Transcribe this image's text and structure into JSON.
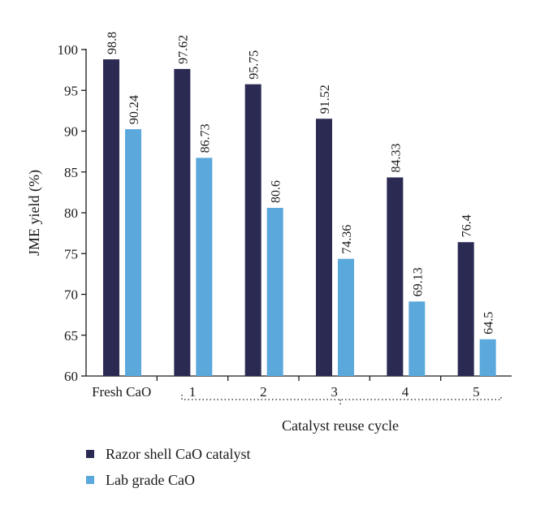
{
  "chart_data": {
    "type": "bar",
    "categories": [
      "Fresh CaO",
      "1",
      "2",
      "3",
      "4",
      "5"
    ],
    "series": [
      {
        "name": "Razor shell CaO catalyst",
        "color": "#2b2a53",
        "values": [
          98.8,
          97.62,
          95.75,
          91.52,
          84.33,
          76.4
        ],
        "labels": [
          "98.8",
          "97.62",
          "95.75",
          "91.52",
          "84.33",
          "76.4"
        ]
      },
      {
        "name": "Lab grade CaO",
        "color": "#5aa8dc",
        "values": [
          90.24,
          86.73,
          80.6,
          74.36,
          69.13,
          64.5
        ],
        "labels": [
          "90.24",
          "86.73",
          "80.6",
          "74.36",
          "69.13",
          "64.5"
        ]
      }
    ],
    "ylabel": "JME yield (%)",
    "group_label": "Catalyst reuse cycle",
    "ylim": [
      60,
      100
    ],
    "yticks": [
      60,
      65,
      70,
      75,
      80,
      85,
      90,
      95,
      100
    ],
    "grid": false,
    "legend_position": "bottom-left"
  }
}
